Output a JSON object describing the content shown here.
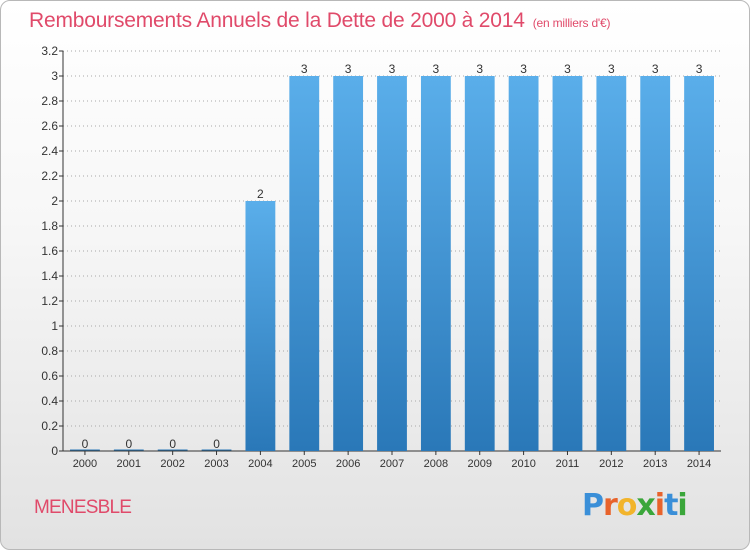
{
  "page": {
    "title": "Remboursements Annuels de la Dette de 2000 à 2014",
    "unit": "(en milliers d'€)",
    "commune": "MENESBLE",
    "brand": {
      "letters": [
        "P",
        "r",
        "o",
        "x",
        "i",
        "t",
        "i"
      ],
      "colors": [
        "#3a8fd8",
        "#e8632b",
        "#f2b42b",
        "#3aa63a",
        "#e8632b",
        "#3a8fd8",
        "#3aa63a"
      ]
    }
  },
  "chart_data": {
    "type": "bar",
    "title": "Remboursements Annuels de la Dette de 2000 à 2014",
    "categories": [
      "2000",
      "2001",
      "2002",
      "2003",
      "2004",
      "2005",
      "2006",
      "2007",
      "2008",
      "2009",
      "2010",
      "2011",
      "2012",
      "2013",
      "2014"
    ],
    "values": [
      0,
      0,
      0,
      0,
      2,
      3,
      3,
      3,
      3,
      3,
      3,
      3,
      3,
      3,
      3
    ],
    "data_labels": [
      "0",
      "0",
      "0",
      "0",
      "2",
      "3",
      "3",
      "3",
      "3",
      "3",
      "3",
      "3",
      "3",
      "3",
      "3"
    ],
    "ylim": [
      0,
      3.2
    ],
    "y_ticks": [
      {
        "value": 0,
        "label": "0"
      },
      {
        "value": 0.2,
        "label": "0.2"
      },
      {
        "value": 0.4,
        "label": "0.4"
      },
      {
        "value": 0.6,
        "label": "0.6"
      },
      {
        "value": 0.8,
        "label": "0.8"
      },
      {
        "value": 1.0,
        "label": "1"
      },
      {
        "value": 1.2,
        "label": "1.2"
      },
      {
        "value": 1.4,
        "label": "1.4"
      },
      {
        "value": 1.6,
        "label": "1.6"
      },
      {
        "value": 1.8,
        "label": "1.8"
      },
      {
        "value": 2.0,
        "label": "2"
      },
      {
        "value": 2.2,
        "label": "2.2"
      },
      {
        "value": 2.4,
        "label": "2.4"
      },
      {
        "value": 2.6,
        "label": "2.6"
      },
      {
        "value": 2.8,
        "label": "2.8"
      },
      {
        "value": 3.0,
        "label": "3"
      },
      {
        "value": 3.2,
        "label": "3.2"
      }
    ],
    "grid": true,
    "legend": "none",
    "colors": {
      "bar_light": "#5aaeea",
      "bar_dark": "#2a78b8",
      "grid": "#a8a8a8",
      "axis": "#333333"
    }
  }
}
